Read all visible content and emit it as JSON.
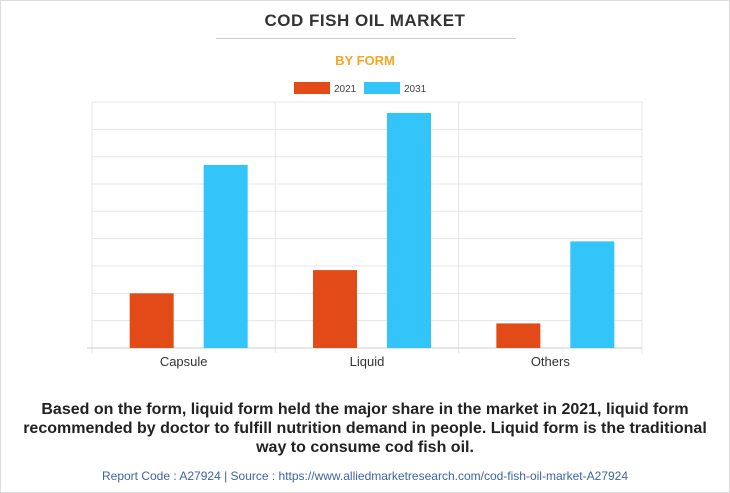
{
  "header": {
    "title": "COD FISH OIL MARKET",
    "subtitle": "BY FORM"
  },
  "colors": {
    "subtitle": "#f5a623",
    "grid": "#e6e6e6",
    "axis": "#cccccc"
  },
  "chart_data": {
    "type": "bar",
    "categories": [
      "Capsule",
      "Liquid",
      "Others"
    ],
    "series": [
      {
        "name": "2021",
        "color": "#e24a17",
        "values": [
          20,
          28.5,
          9
        ]
      },
      {
        "name": "2031",
        "color": "#33c4fa",
        "values": [
          67,
          86,
          39
        ]
      }
    ],
    "ylim": [
      0,
      90
    ],
    "grid": true,
    "y_tick_labels_shown": false,
    "legend": "top-center"
  },
  "caption": "Based on the form, liquid form held the major share in the market in 2021, liquid form recommended by doctor to fulfill nutrition demand in people. Liquid form is the traditional way to consume cod fish oil.",
  "footer": "Report Code : A27924  |  Source : https://www.alliedmarketresearch.com/cod-fish-oil-market-A27924"
}
